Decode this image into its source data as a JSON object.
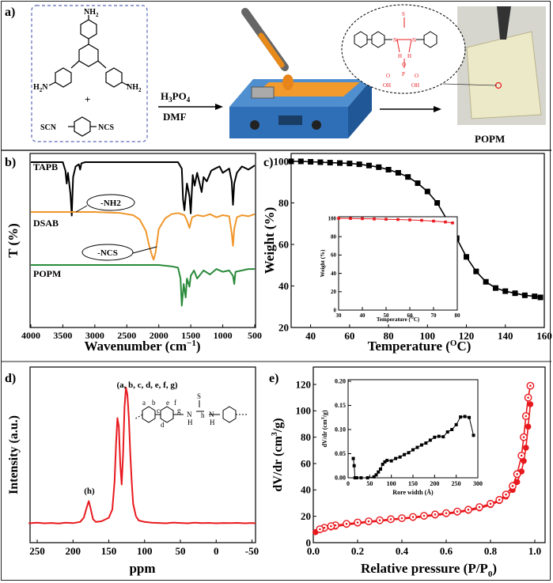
{
  "panel_labels": {
    "a": "a)",
    "b": "b)",
    "c": "c)",
    "d": "d)",
    "e": "e)"
  },
  "scheme": {
    "amine_label": "NH",
    "amine_sub": "2",
    "amine_left": "H",
    "amine_left_sub": "2",
    "amine_left_n": "N",
    "plus": "+",
    "thio_left": "SCN",
    "thio_right": "NCS",
    "reagent_acid": "H",
    "reagent_acid_sub": "3",
    "reagent_acid_rest": "PO",
    "reagent_acid_sub2": "4",
    "reagent_solvent": "DMF",
    "membrane_label": "POPM",
    "struct_labels": {
      "S": "S",
      "N": "N",
      "H": "H",
      "O": "O",
      "P": "P",
      "OH": "OH"
    }
  },
  "colors": {
    "black": "#000000",
    "orange": "#f0962a",
    "green": "#2a8a3a",
    "red": "#e8191e",
    "device_blue": "#2f6fb7"
  },
  "chart_data": [
    {
      "id": "b",
      "type": "line",
      "title": "",
      "xlabel": "Wavenumber (cm",
      "xlabel_sup": "−1",
      "xlabel_end": ")",
      "ylabel": "T (%)",
      "xlim": [
        4000,
        500
      ],
      "xticks": [
        4000,
        3500,
        3000,
        2500,
        2000,
        1500,
        1000,
        500
      ],
      "series": [
        {
          "name": "TAPB",
          "color": "#000000",
          "x": [
            4000,
            3700,
            3500,
            3460,
            3440,
            3420,
            3380,
            3360,
            3340,
            3300,
            3250,
            3230,
            3210,
            3150,
            3000,
            2500,
            2000,
            1700,
            1640,
            1620,
            1600,
            1560,
            1520,
            1500,
            1470,
            1440,
            1400,
            1330,
            1300,
            1250,
            1180,
            1120,
            1050,
            1000,
            900,
            860,
            840,
            820,
            780,
            700,
            600,
            550,
            500
          ],
          "y": [
            100,
            100,
            100,
            92,
            80,
            90,
            70,
            50,
            86,
            96,
            98,
            93,
            99,
            100,
            100,
            100,
            100,
            100,
            94,
            65,
            55,
            80,
            68,
            52,
            88,
            78,
            90,
            72,
            86,
            82,
            92,
            94,
            96,
            90,
            94,
            82,
            60,
            80,
            90,
            96,
            93,
            95,
            97
          ]
        },
        {
          "name": "DSAB",
          "color": "#f0962a",
          "x": [
            4000,
            3500,
            3000,
            2600,
            2400,
            2300,
            2200,
            2150,
            2100,
            2080,
            2050,
            2000,
            1900,
            1800,
            1700,
            1600,
            1560,
            1520,
            1500,
            1480,
            1400,
            1300,
            1200,
            1100,
            1000,
            900,
            860,
            840,
            820,
            780,
            700,
            600,
            500
          ],
          "y": [
            100,
            100,
            100,
            99,
            97,
            93,
            82,
            68,
            58,
            55,
            62,
            84,
            94,
            98,
            99,
            97,
            92,
            85,
            90,
            95,
            97,
            96,
            98,
            95,
            97,
            96,
            80,
            68,
            84,
            95,
            97,
            96,
            98
          ]
        },
        {
          "name": "POPM",
          "color": "#2a8a3a",
          "x": [
            4000,
            3500,
            3000,
            2500,
            2000,
            1800,
            1700,
            1660,
            1640,
            1610,
            1580,
            1560,
            1520,
            1500,
            1450,
            1400,
            1300,
            1200,
            1100,
            1000,
            900,
            840,
            820,
            800,
            700,
            600,
            500
          ],
          "y": [
            100,
            100,
            100,
            100,
            100,
            99,
            98,
            90,
            70,
            86,
            76,
            90,
            84,
            92,
            96,
            90,
            96,
            93,
            97,
            95,
            96,
            92,
            86,
            95,
            96,
            97,
            97
          ]
        }
      ],
      "annotations": [
        "-NH2",
        "-NCS"
      ]
    },
    {
      "id": "c",
      "type": "line",
      "title": "",
      "xlabel": "Temperature (",
      "xlabel_sup": "O",
      "xlabel_end": "C)",
      "ylabel": "Weight (%)",
      "xlim": [
        30,
        160
      ],
      "ylim": [
        20,
        100
      ],
      "xticks": [
        40,
        60,
        80,
        100,
        120,
        140,
        160
      ],
      "yticks": [
        20,
        40,
        60,
        80,
        100
      ],
      "series": [
        {
          "name": "",
          "color": "#000000",
          "x": [
            30,
            35,
            40,
            45,
            50,
            55,
            60,
            65,
            70,
            75,
            80,
            85,
            90,
            95,
            100,
            105,
            110,
            115,
            120,
            125,
            130,
            135,
            140,
            145,
            150,
            155,
            158
          ],
          "y": [
            100,
            100,
            99.8,
            99.6,
            99.4,
            99.2,
            99,
            98.6,
            98,
            97.2,
            96,
            94.5,
            92.5,
            89.5,
            85.5,
            80,
            72,
            63,
            54,
            47,
            42,
            39,
            37.5,
            36.5,
            35.5,
            35,
            34.5
          ]
        }
      ],
      "inset": {
        "xlabel": "Temperature (",
        "xlabel_sup": "O",
        "xlabel_end": "C)",
        "ylabel": "Weight (%)",
        "xlim": [
          30,
          80
        ],
        "ylim": [
          0,
          100
        ],
        "xticks": [
          30,
          40,
          50,
          60,
          70,
          80
        ],
        "yticks": [
          0,
          20,
          40,
          60,
          80,
          100
        ],
        "series": [
          {
            "name": "",
            "color": "#e8191e",
            "x": [
              30,
              35,
              40,
              45,
              50,
              55,
              60,
              65,
              70,
              75,
              78
            ],
            "y": [
              100,
              99.8,
              99.6,
              99.3,
              99,
              98.7,
              98.3,
              97.8,
              97,
              96,
              95
            ]
          }
        ]
      }
    },
    {
      "id": "d",
      "type": "line",
      "title": "",
      "xlabel": "ppm",
      "ylabel": "Intensity (a.u.)",
      "xlim": [
        260,
        -55
      ],
      "xticks": [
        250,
        200,
        150,
        100,
        50,
        0,
        -50
      ],
      "series": [
        {
          "name": "",
          "color": "#e8191e",
          "x": [
            262,
            250,
            240,
            230,
            220,
            210,
            200,
            190,
            185,
            180,
            178,
            176,
            172,
            168,
            160,
            150,
            145,
            142,
            140,
            138,
            136,
            134,
            132,
            130,
            128,
            126,
            124,
            122,
            120,
            118,
            116,
            112,
            108,
            100,
            90,
            80,
            70,
            60,
            50,
            40,
            30,
            20,
            10,
            0,
            -10,
            -20,
            -30,
            -40,
            -50,
            -55
          ],
          "y": [
            2,
            2.4,
            2,
            2.2,
            1.9,
            2.4,
            2.1,
            3,
            6,
            15,
            18,
            14,
            5,
            3,
            3.5,
            6,
            12,
            32,
            58,
            78,
            72,
            45,
            30,
            52,
            86,
            100,
            95,
            78,
            52,
            32,
            16,
            7,
            4,
            3,
            2.4,
            2.2,
            2,
            2.5,
            2.2,
            2,
            2.4,
            2.1,
            2.3,
            2,
            2.2,
            2.1,
            2.3,
            2,
            2.2,
            2
          ]
        }
      ],
      "annotations": [
        "(a, b, c, d, e, f, g)",
        "(h)"
      ],
      "struct_labels": [
        "a",
        "b",
        "c",
        "d",
        "e",
        "f",
        "g",
        "h",
        "N",
        "N",
        "H",
        "H",
        "S"
      ]
    },
    {
      "id": "e",
      "type": "line",
      "title": "",
      "xlabel": "Relative pressure (P/P",
      "xlabel_sub": "0",
      "xlabel_end": ")",
      "ylabel": "dV/dr (cm",
      "ylabel_sup": "3",
      "ylabel_end": "/g)",
      "xlim": [
        0,
        1.0
      ],
      "ylim": [
        0,
        120
      ],
      "xticks": [
        0.0,
        0.2,
        0.4,
        0.6,
        0.8,
        1.0
      ],
      "yticks": [
        0,
        20,
        40,
        60,
        80,
        100,
        120
      ],
      "series": [
        {
          "name": "",
          "color": "#e8191e",
          "x": [
            0.01,
            0.03,
            0.05,
            0.08,
            0.1,
            0.15,
            0.2,
            0.25,
            0.3,
            0.35,
            0.4,
            0.45,
            0.5,
            0.55,
            0.6,
            0.65,
            0.7,
            0.75,
            0.8,
            0.84,
            0.87,
            0.9,
            0.92,
            0.94,
            0.95,
            0.96,
            0.97,
            0.98
          ],
          "y": [
            8,
            9.5,
            10.5,
            11.5,
            12.2,
            13.5,
            14.5,
            15.5,
            16.3,
            17.2,
            18,
            18.8,
            19.7,
            20.6,
            21.6,
            22.8,
            24.2,
            26,
            28.5,
            31.5,
            35,
            40,
            46,
            54,
            62,
            72,
            88,
            105
          ]
        },
        {
          "name": "",
          "color": "#e8191e",
          "x": [
            0.98,
            0.97,
            0.96,
            0.95,
            0.94,
            0.92,
            0.9,
            0.87,
            0.84,
            0.8,
            0.75,
            0.7,
            0.65,
            0.6,
            0.55,
            0.5,
            0.45,
            0.4,
            0.35,
            0.3,
            0.25,
            0.2,
            0.15,
            0.1,
            0.08,
            0.05,
            0.03
          ],
          "y": [
            119,
            110,
            96,
            80,
            66,
            52,
            43,
            36.5,
            32.5,
            29.5,
            27,
            25,
            23.6,
            22.4,
            21.4,
            20.4,
            19.5,
            18.6,
            17.8,
            17,
            16.2,
            15.3,
            14.3,
            13.2,
            12.5,
            11.3,
            10.2
          ]
        }
      ],
      "inset": {
        "xlabel": "Rore width (Å)",
        "ylabel": "dV/dr (cm",
        "ylabel_sup": "3",
        "ylabel_end": "/g)",
        "xlim": [
          0,
          300
        ],
        "ylim": [
          0,
          0.2
        ],
        "xticks": [
          0,
          50,
          100,
          150,
          200,
          250,
          300
        ],
        "yticks": [
          0.0,
          0.05,
          0.1,
          0.15,
          0.2
        ],
        "series": [
          {
            "name": "",
            "color": "#000000",
            "x": [
              12,
              14,
              16,
              20,
              30,
              45,
              60,
              65,
              70,
              75,
              80,
              85,
              90,
              100,
              110,
              120,
              130,
              140,
              150,
              160,
              170,
              180,
              190,
              200,
              210,
              220,
              230,
              240,
              250,
              260,
              270,
              280,
              290
            ],
            "y": [
              0.04,
              0.025,
              0.0,
              0.0,
              0.0,
              0.0,
              0.002,
              0.006,
              0.012,
              0.018,
              0.028,
              0.033,
              0.036,
              0.035,
              0.04,
              0.043,
              0.048,
              0.052,
              0.058,
              0.063,
              0.068,
              0.072,
              0.078,
              0.084,
              0.086,
              0.085,
              0.095,
              0.1,
              0.11,
              0.126,
              0.127,
              0.125,
              0.088
            ]
          }
        ]
      }
    }
  ]
}
